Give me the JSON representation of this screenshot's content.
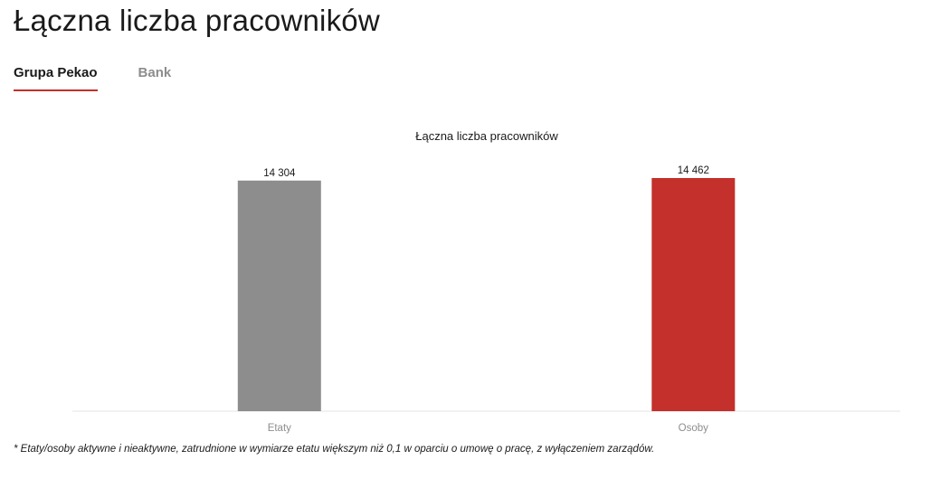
{
  "page": {
    "title": "Łączna liczba pracowników"
  },
  "tabs": [
    {
      "label": "Grupa Pekao",
      "active": true
    },
    {
      "label": "Bank",
      "active": false
    }
  ],
  "colors": {
    "accent": "#c4302b",
    "bar_gray": "#8d8d8d",
    "bar_red": "#c4302b",
    "axis_line": "#e6e6e6",
    "tick_text": "#8d8d8d"
  },
  "chart_data": {
    "type": "bar",
    "title": "Łączna liczba pracowników",
    "categories": [
      "Etaty",
      "Osoby"
    ],
    "values": [
      14304,
      14462
    ],
    "value_labels": [
      "14 304",
      "14 462"
    ],
    "bar_colors": [
      "#8d8d8d",
      "#c4302b"
    ],
    "xlabel": "",
    "ylabel": "",
    "ylim": [
      0,
      14462
    ],
    "grid": false,
    "legend": "none"
  },
  "footnote": "* Etaty/osoby aktywne i nieaktywne, zatrudnione w wymiarze etatu większym niż 0,1 w oparciu o umowę o pracę, z wyłączeniem zarządów."
}
